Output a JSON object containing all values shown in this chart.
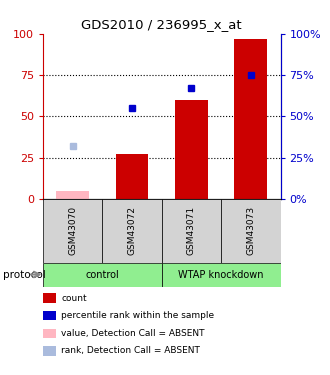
{
  "title": "GDS2010 / 236995_x_at",
  "samples": [
    "GSM43070",
    "GSM43072",
    "GSM43071",
    "GSM43073"
  ],
  "groups": [
    "control",
    "control",
    "WTAP knockdown",
    "WTAP knockdown"
  ],
  "group_labels": [
    "control",
    "WTAP knockdown"
  ],
  "red_bars": [
    5,
    27,
    60,
    97
  ],
  "blue_squares": [
    32,
    55,
    67,
    75
  ],
  "absent_mask": [
    true,
    false,
    false,
    false
  ],
  "ylim": [
    0,
    100
  ],
  "yticks": [
    0,
    25,
    50,
    75,
    100
  ],
  "bar_color_present": "#CC0000",
  "bar_color_absent": "#FFB6C1",
  "square_color_present": "#0000CC",
  "square_color_absent": "#AABBDD",
  "left_axis_color": "#CC0000",
  "right_axis_color": "#0000CC",
  "legend_items": [
    {
      "label": "count",
      "color": "#CC0000"
    },
    {
      "label": "percentile rank within the sample",
      "color": "#0000CC"
    },
    {
      "label": "value, Detection Call = ABSENT",
      "color": "#FFB6C1"
    },
    {
      "label": "rank, Detection Call = ABSENT",
      "color": "#AABBDD"
    }
  ],
  "protocol_label": "protocol"
}
